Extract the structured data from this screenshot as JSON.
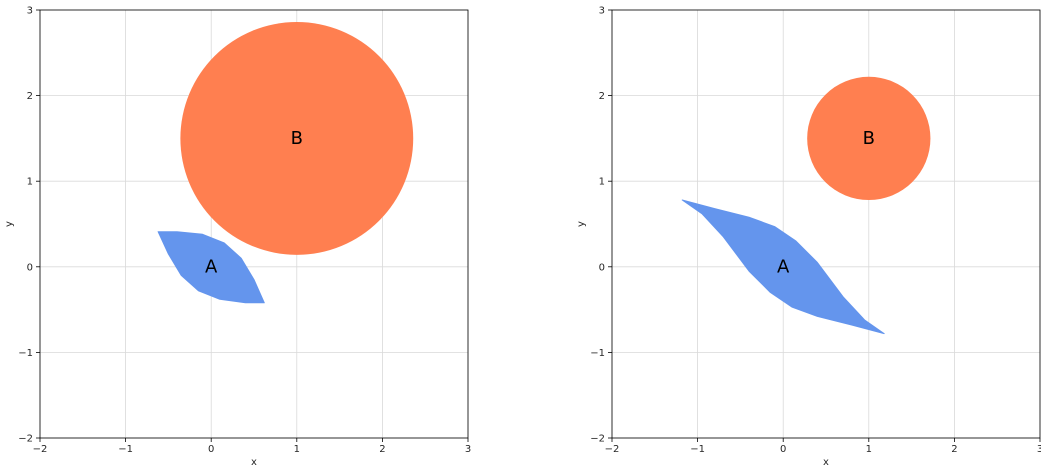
{
  "colors": {
    "A": "#6495ed",
    "B": "#ff7f50"
  },
  "chart_data": [
    {
      "type": "scatter",
      "panel": "left",
      "xlabel": "x",
      "ylabel": "y",
      "xlim": [
        -2,
        3
      ],
      "ylim": [
        -2,
        3
      ],
      "grid": true,
      "x_ticks": [
        "−2",
        "−1",
        "0",
        "1",
        "2",
        "3"
      ],
      "y_ticks": [
        "−2",
        "−1",
        "0",
        "1",
        "2",
        "3"
      ],
      "shapes": [
        {
          "label": "A",
          "kind": "lens",
          "color": "#6495ed",
          "label_at": [
            0,
            0
          ],
          "outline": [
            [
              -0.62,
              0.41
            ],
            [
              -0.4,
              0.41
            ],
            [
              -0.1,
              0.38
            ],
            [
              0.15,
              0.28
            ],
            [
              0.35,
              0.1
            ],
            [
              0.5,
              -0.15
            ],
            [
              0.62,
              -0.42
            ],
            [
              0.4,
              -0.42
            ],
            [
              0.1,
              -0.38
            ],
            [
              -0.15,
              -0.28
            ],
            [
              -0.35,
              -0.1
            ],
            [
              -0.5,
              0.15
            ]
          ]
        },
        {
          "label": "B",
          "kind": "circle",
          "color": "#ff7f50",
          "center": [
            1,
            1.5
          ],
          "radius": 1.36,
          "label_at": [
            1,
            1.5
          ]
        }
      ]
    },
    {
      "type": "scatter",
      "panel": "right",
      "xlabel": "x",
      "ylabel": "y",
      "xlim": [
        -2,
        3
      ],
      "ylim": [
        -2,
        3
      ],
      "grid": true,
      "x_ticks": [
        "−2",
        "−1",
        "0",
        "1",
        "2",
        "3"
      ],
      "y_ticks": [
        "−2",
        "−1",
        "0",
        "1",
        "2",
        "3"
      ],
      "shapes": [
        {
          "label": "A",
          "kind": "lens",
          "color": "#6495ed",
          "label_at": [
            0,
            0
          ],
          "outline": [
            [
              -1.18,
              0.78
            ],
            [
              -0.8,
              0.68
            ],
            [
              -0.4,
              0.58
            ],
            [
              -0.1,
              0.47
            ],
            [
              0.15,
              0.3
            ],
            [
              0.4,
              0.05
            ],
            [
              0.7,
              -0.35
            ],
            [
              0.95,
              -0.62
            ],
            [
              1.18,
              -0.78
            ],
            [
              0.8,
              -0.68
            ],
            [
              0.4,
              -0.58
            ],
            [
              0.1,
              -0.47
            ],
            [
              -0.15,
              -0.3
            ],
            [
              -0.4,
              -0.05
            ],
            [
              -0.7,
              0.35
            ],
            [
              -0.95,
              0.62
            ]
          ]
        },
        {
          "label": "B",
          "kind": "circle",
          "color": "#ff7f50",
          "center": [
            1,
            1.5
          ],
          "radius": 0.72,
          "label_at": [
            1,
            1.5
          ]
        }
      ]
    }
  ]
}
